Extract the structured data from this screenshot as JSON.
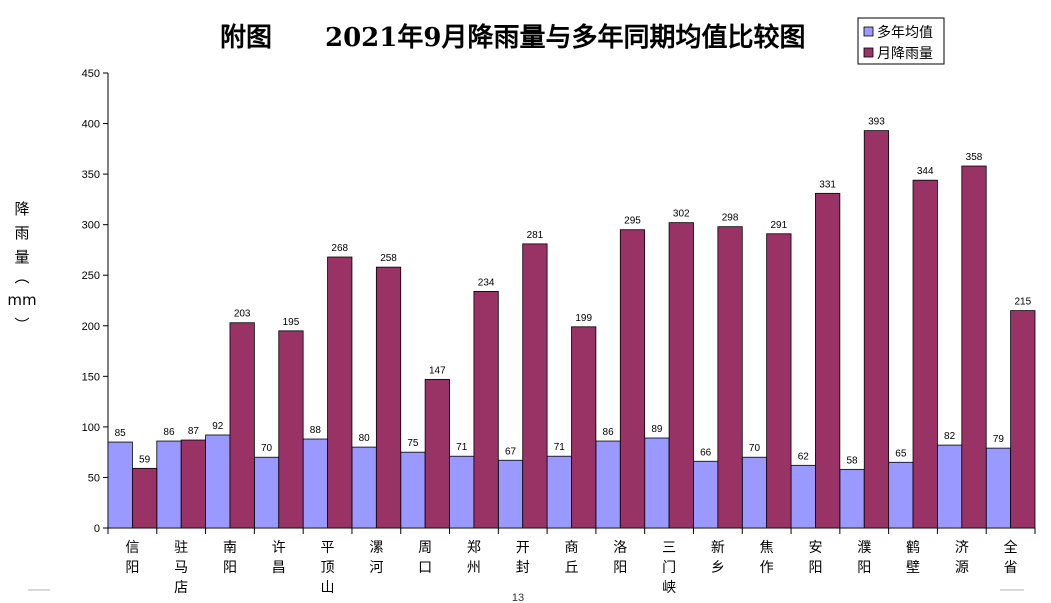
{
  "chart_data": {
    "type": "bar",
    "title_left": "附图",
    "title_right": "2021年9月降雨量与多年同期均值比较图",
    "ylabel_chars": [
      "降",
      "雨",
      "量",
      "︵",
      "mm",
      "︶"
    ],
    "ylim": [
      0,
      450
    ],
    "yticks": [
      0,
      50,
      100,
      150,
      200,
      250,
      300,
      350,
      400,
      450
    ],
    "legend_position": "top-right",
    "categories": [
      "信阳",
      "驻马店",
      "南阳",
      "许昌",
      "平顶山",
      "漯河",
      "周口",
      "郑州",
      "开封",
      "商丘",
      "洛阳",
      "三门峡",
      "新乡",
      "焦作",
      "安阳",
      "濮阳",
      "鹤壁",
      "济源",
      "全省"
    ],
    "series": [
      {
        "name": "多年均值",
        "color": "#9999ff",
        "values": [
          85,
          86,
          92,
          70,
          88,
          80,
          75,
          71,
          67,
          71,
          86,
          89,
          66,
          70,
          62,
          58,
          65,
          82,
          79
        ]
      },
      {
        "name": "月降雨量",
        "color": "#993366",
        "values": [
          59,
          87,
          203,
          195,
          268,
          258,
          147,
          234,
          281,
          199,
          295,
          302,
          298,
          291,
          331,
          393,
          344,
          358,
          215
        ]
      }
    ],
    "grid": false
  },
  "footer": {
    "page_number": "13"
  }
}
